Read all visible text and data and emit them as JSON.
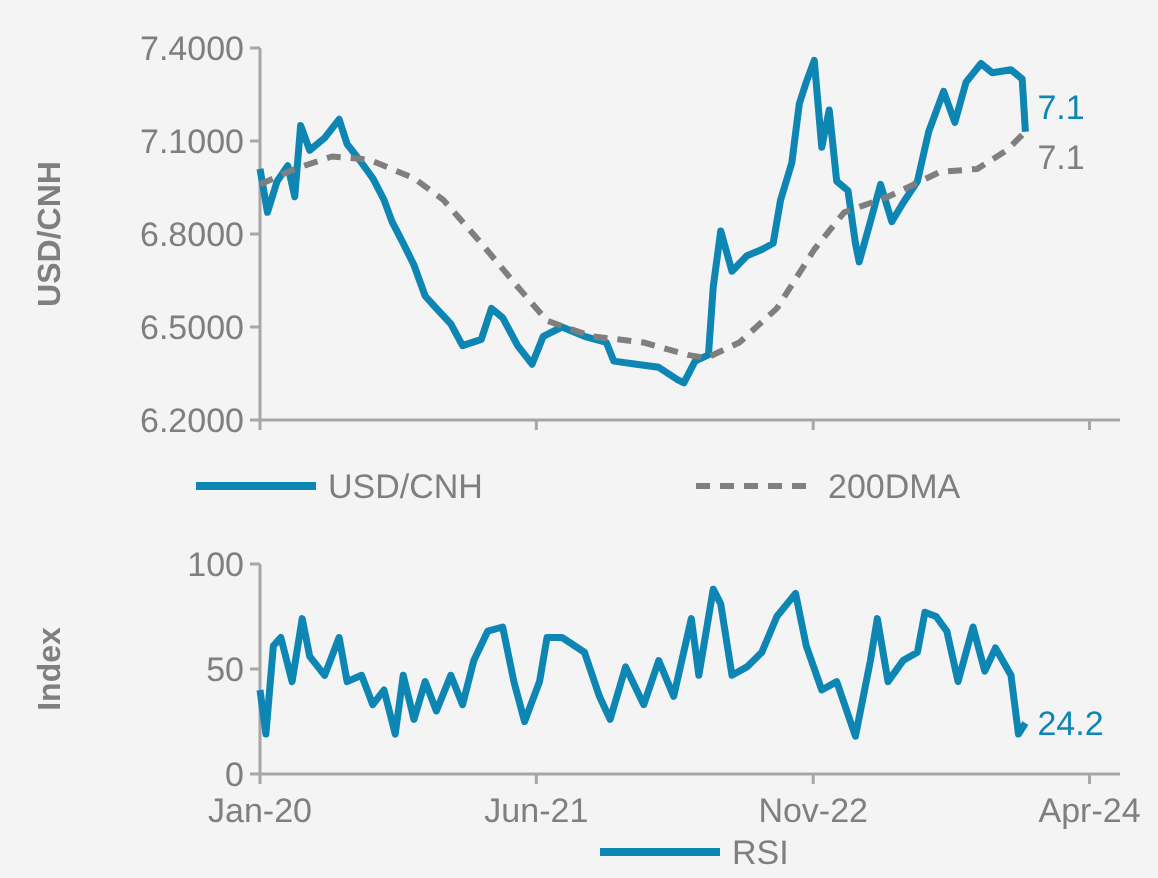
{
  "chart_data": [
    {
      "type": "line",
      "ylabel": "USD/CNH",
      "xlim": [
        "2020-01-01",
        "2024-05-28"
      ],
      "xticks": [
        {
          "value": "2020-01-01",
          "label": null
        },
        {
          "value": "2021-06-01",
          "label": null
        },
        {
          "value": "2022-11-01",
          "label": null
        },
        {
          "value": "2024-04-01",
          "label": null
        }
      ],
      "tick_labels": "y",
      "ylim": [
        6.2,
        7.4
      ],
      "yticks": [
        {
          "value": 6.2,
          "label": "6.2000"
        },
        {
          "value": 6.5,
          "label": "6.5000"
        },
        {
          "value": 6.8,
          "label": "6.8000"
        },
        {
          "value": 7.1,
          "label": "7.1000"
        },
        {
          "value": 7.4,
          "label": "7.4000"
        }
      ],
      "legend": "bottom",
      "grid": false,
      "series": [
        {
          "name": "USD/CNH",
          "color": "#0e86b4",
          "line_style": "solid",
          "x": [
            "2020-01-01",
            "2020-01-15",
            "2020-02-02",
            "2020-02-22",
            "2020-03-06",
            "2020-03-17",
            "2020-04-03",
            "2020-05-01",
            "2020-05-28",
            "2020-06-12",
            "2020-07-09",
            "2020-07-30",
            "2020-08-20",
            "2020-09-04",
            "2020-09-25",
            "2020-10-15",
            "2020-11-05",
            "2020-11-26",
            "2020-12-23",
            "2021-01-14",
            "2021-02-18",
            "2021-03-09",
            "2021-03-30",
            "2021-04-27",
            "2021-05-24",
            "2021-06-14",
            "2021-07-19",
            "2021-08-30",
            "2021-10-10",
            "2021-10-24",
            "2021-12-05",
            "2022-01-16",
            "2022-02-20",
            "2022-03-04",
            "2022-03-25",
            "2022-04-19",
            "2022-04-28",
            "2022-05-12",
            "2022-06-02",
            "2022-06-30",
            "2022-07-28",
            "2022-08-18",
            "2022-09-01",
            "2022-09-22",
            "2022-10-06",
            "2022-10-19",
            "2022-11-03",
            "2022-11-17",
            "2022-12-01",
            "2022-12-15",
            "2023-01-05",
            "2023-01-19",
            "2023-01-26",
            "2023-02-16",
            "2023-03-07",
            "2023-03-28",
            "2023-04-18",
            "2023-05-15",
            "2023-06-05",
            "2023-07-03",
            "2023-07-24",
            "2023-08-14",
            "2023-09-11",
            "2023-10-02",
            "2023-11-06",
            "2023-11-27",
            "2023-12-03"
          ],
          "values": [
            7.01,
            6.87,
            6.97,
            7.02,
            6.92,
            7.15,
            7.07,
            7.11,
            7.17,
            7.09,
            7.03,
            6.98,
            6.91,
            6.84,
            6.77,
            6.7,
            6.6,
            6.56,
            6.51,
            6.44,
            6.46,
            6.56,
            6.53,
            6.44,
            6.38,
            6.47,
            6.5,
            6.47,
            6.45,
            6.39,
            6.38,
            6.37,
            6.33,
            6.32,
            6.39,
            6.41,
            6.63,
            6.81,
            6.68,
            6.73,
            6.75,
            6.77,
            6.91,
            7.03,
            7.22,
            7.29,
            7.36,
            7.08,
            7.2,
            6.97,
            6.94,
            6.77,
            6.71,
            6.84,
            6.96,
            6.84,
            6.9,
            6.97,
            7.13,
            7.26,
            7.16,
            7.29,
            7.35,
            7.32,
            7.33,
            7.3,
            7.13
          ]
        },
        {
          "name": "200DMA",
          "color": "#7f7f7f",
          "line_style": "dashed",
          "x": [
            "2020-01-01",
            "2020-03-06",
            "2020-05-15",
            "2020-07-23",
            "2020-10-15",
            "2020-12-09",
            "2021-02-18",
            "2021-04-27",
            "2021-06-21",
            "2021-09-13",
            "2021-12-19",
            "2022-03-11",
            "2022-04-15",
            "2022-06-16",
            "2022-08-25",
            "2022-11-03",
            "2022-12-29",
            "2023-03-21",
            "2023-06-26",
            "2023-09-04",
            "2023-10-29",
            "2023-12-03"
          ],
          "values": [
            6.96,
            7.01,
            7.05,
            7.04,
            6.98,
            6.91,
            6.77,
            6.63,
            6.52,
            6.47,
            6.45,
            6.41,
            6.4,
            6.45,
            6.56,
            6.75,
            6.87,
            6.92,
            7.0,
            7.01,
            7.07,
            7.13
          ]
        }
      ],
      "annotations": [
        {
          "text": "7.1",
          "x": "2023-12-03",
          "y": 7.13
        },
        {
          "text": "7.1",
          "x": "2023-12-03",
          "y": 7.13
        }
      ]
    },
    {
      "type": "line",
      "ylabel": "Index",
      "xlim": [
        "2020-01-01",
        "2024-05-28"
      ],
      "xticks": [
        {
          "value": "2020-01-01",
          "label": "Jan-20"
        },
        {
          "value": "2021-06-01",
          "label": "Jun-21"
        },
        {
          "value": "2022-11-01",
          "label": "Nov-22"
        },
        {
          "value": "2024-04-01",
          "label": "Apr-24"
        }
      ],
      "ylim": [
        0,
        100
      ],
      "yticks": [
        0,
        50,
        100
      ],
      "legend": "bottom",
      "grid": false,
      "series": [
        {
          "name": "RSI",
          "color": "#0e86b4",
          "line_style": "solid",
          "x": [
            "2020-01-01",
            "2020-01-12",
            "2020-01-26",
            "2020-02-09",
            "2020-03-01",
            "2020-03-20",
            "2020-04-03",
            "2020-05-01",
            "2020-05-28",
            "2020-06-12",
            "2020-07-09",
            "2020-07-30",
            "2020-08-20",
            "2020-09-10",
            "2020-09-25",
            "2020-10-15",
            "2020-11-05",
            "2020-11-26",
            "2020-12-23",
            "2021-01-14",
            "2021-02-04",
            "2021-03-02",
            "2021-03-30",
            "2021-04-20",
            "2021-05-10",
            "2021-06-07",
            "2021-06-21",
            "2021-07-19",
            "2021-08-30",
            "2021-09-27",
            "2021-10-17",
            "2021-11-15",
            "2021-12-19",
            "2022-01-16",
            "2022-02-13",
            "2022-03-18",
            "2022-04-01",
            "2022-04-28",
            "2022-05-12",
            "2022-06-02",
            "2022-06-30",
            "2022-07-28",
            "2022-08-25",
            "2022-09-29",
            "2022-10-19",
            "2022-11-17",
            "2022-12-15",
            "2023-01-19",
            "2023-02-16",
            "2023-03-01",
            "2023-03-21",
            "2023-04-18",
            "2023-05-15",
            "2023-05-29",
            "2023-06-19",
            "2023-07-09",
            "2023-07-30",
            "2023-08-27",
            "2023-09-18",
            "2023-10-08",
            "2023-11-06",
            "2023-11-20",
            "2023-12-03"
          ],
          "values": [
            40,
            19,
            61,
            65,
            44,
            74,
            56,
            47,
            65,
            44,
            47,
            33,
            40,
            19,
            47,
            26,
            44,
            30,
            47,
            33,
            54,
            68,
            70,
            44,
            25,
            44,
            65,
            65,
            58,
            37,
            26,
            51,
            33,
            54,
            37,
            74,
            47,
            88,
            81,
            47,
            51,
            58,
            75,
            86,
            61,
            40,
            44,
            18,
            54,
            74,
            44,
            54,
            58,
            77,
            75,
            68,
            44,
            70,
            49,
            60,
            47,
            19,
            24.2
          ]
        }
      ],
      "annotations": [
        {
          "text": "24.2",
          "x": "2023-12-03",
          "y": 24.2
        }
      ]
    }
  ]
}
